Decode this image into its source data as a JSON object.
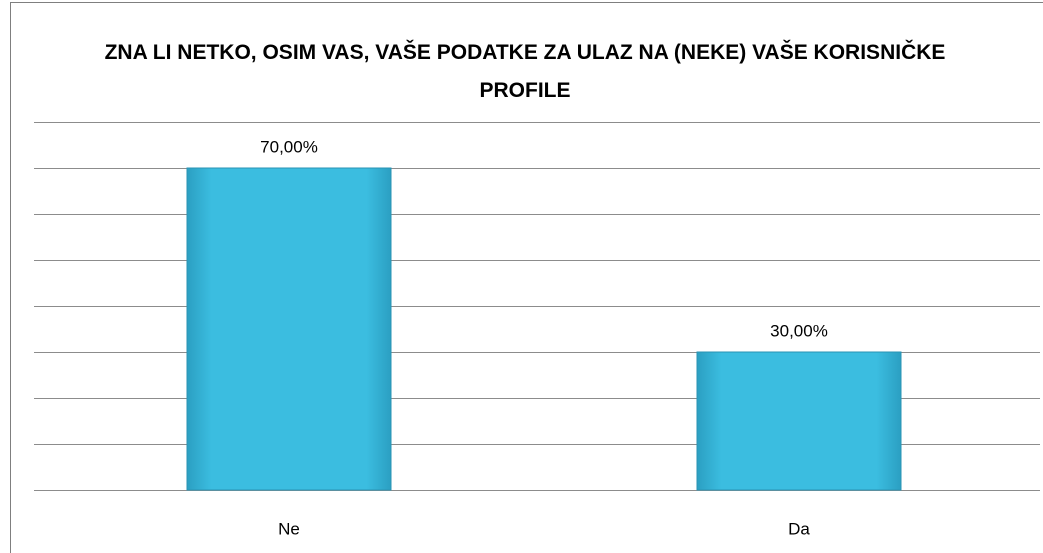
{
  "chart_data": {
    "type": "bar",
    "title": "ZNA LI NETKO, OSIM VAS, VAŠE PODATKE ZA ULAZ NA (NEKE) VAŠE KORISNIČKE PROFILE",
    "categories": [
      "Ne",
      "Da"
    ],
    "values": [
      70,
      30
    ],
    "value_labels": [
      "70,00%",
      "30,00%"
    ],
    "color": "#3bbde0",
    "ylim": [
      0,
      80
    ],
    "yticks": [
      0,
      10,
      20,
      30,
      40,
      50,
      60,
      70,
      80
    ],
    "grid": true
  }
}
